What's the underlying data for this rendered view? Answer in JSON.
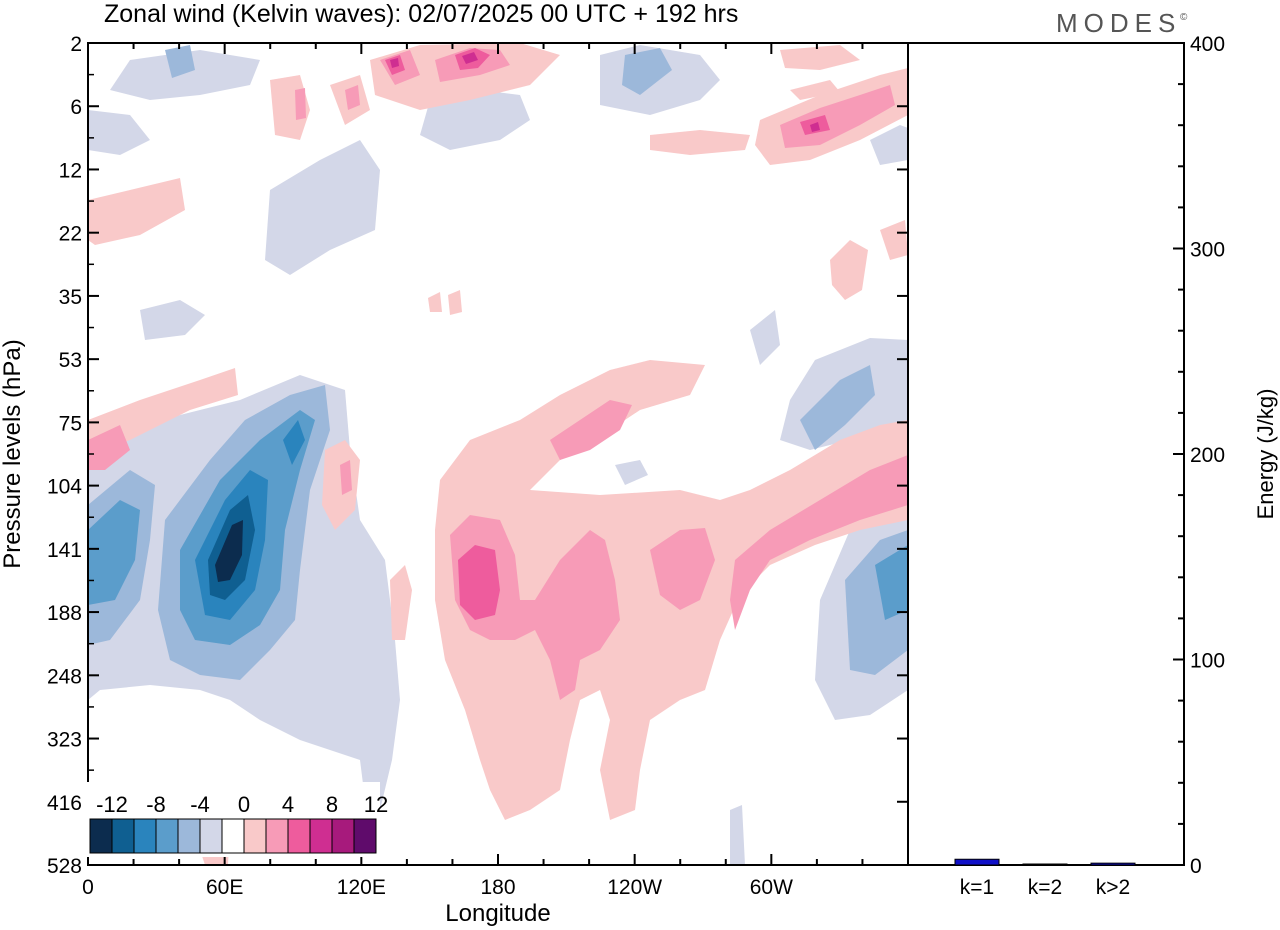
{
  "title": "Zonal wind (Kelvin waves):  02/07/2025  00 UTC  + 192 hrs",
  "brand": "MODES",
  "brand_mark": "©",
  "chart_data": [
    {
      "type": "heatmap",
      "field": "zonal wind (Kelvin waves)",
      "xlabel": "Longitude",
      "ylabel": "Pressure levels (hPa)",
      "x_ticks": [
        {
          "label": "0",
          "lon": 0
        },
        {
          "label": "60E",
          "lon": 60
        },
        {
          "label": "120E",
          "lon": 120
        },
        {
          "label": "180",
          "lon": 180
        },
        {
          "label": "120W",
          "lon": 240
        },
        {
          "label": "60W",
          "lon": 300
        }
      ],
      "xlim": [
        0,
        360
      ],
      "y_ticks": [
        "2",
        "6",
        "12",
        "22",
        "35",
        "53",
        "75",
        "104",
        "141",
        "188",
        "248",
        "323",
        "416",
        "528"
      ],
      "y_scale": "categorical pressure levels, top to bottom",
      "colorbar": {
        "labels": [
          "-12",
          "-8",
          "-4",
          "0",
          "4",
          "8",
          "12"
        ],
        "levels": [
          -14,
          -12,
          -10,
          -8,
          -6,
          -4,
          -2,
          2,
          4,
          6,
          8,
          10,
          12,
          14
        ],
        "colors": [
          "#0c2c4e",
          "#0f5f91",
          "#2a84bd",
          "#5b9dcb",
          "#9cb8da",
          "#d3d7e8",
          "#ffffff",
          "#f9c9c9",
          "#f79bb7",
          "#ee5c9d",
          "#cf2e91",
          "#a71a7c",
          "#5f0b6b"
        ],
        "placement": "bottom-left"
      },
      "features": [
        {
          "sign": "negative",
          "peak": -14,
          "lon": [
            30,
            90
          ],
          "level": "104-248",
          "note": "strongest easterly anomaly near 60E, ~141 hPa"
        },
        {
          "sign": "negative",
          "peak": -6,
          "lon": [
            0,
            30
          ],
          "level": "104-188"
        },
        {
          "sign": "positive",
          "peak": 8,
          "lon": [
            150,
            310
          ],
          "level": "75-416",
          "note": "broad westerly anomaly centred near 170E"
        },
        {
          "sign": "positive",
          "peak": 6,
          "lon": [
            300,
            360
          ],
          "level": "75-141"
        },
        {
          "sign": "negative",
          "peak": -6,
          "lon": [
            330,
            360
          ],
          "level": "141-248"
        },
        {
          "sign": "negative",
          "peak": -6,
          "lon": [
            310,
            350
          ],
          "level": "53-104"
        },
        {
          "sign": "positive",
          "peak": 12,
          "lon": [
            120,
            200
          ],
          "level": "2-6"
        },
        {
          "sign": "positive",
          "peak": 8,
          "lon": [
            300,
            350
          ],
          "level": "6-12"
        },
        {
          "sign": "negative",
          "peak": -4,
          "lon": [
            230,
            270
          ],
          "level": "2-6"
        }
      ]
    },
    {
      "type": "bar",
      "categories": [
        "k=1",
        "k=2",
        "k>2"
      ],
      "values": [
        2.8,
        0.3,
        0.9
      ],
      "ylabel": "Energy (J/kg)",
      "ylim": [
        0,
        400
      ],
      "y_ticks": [
        "0",
        "100",
        "200",
        "300",
        "400"
      ],
      "bar_color": "#1010c8"
    }
  ]
}
